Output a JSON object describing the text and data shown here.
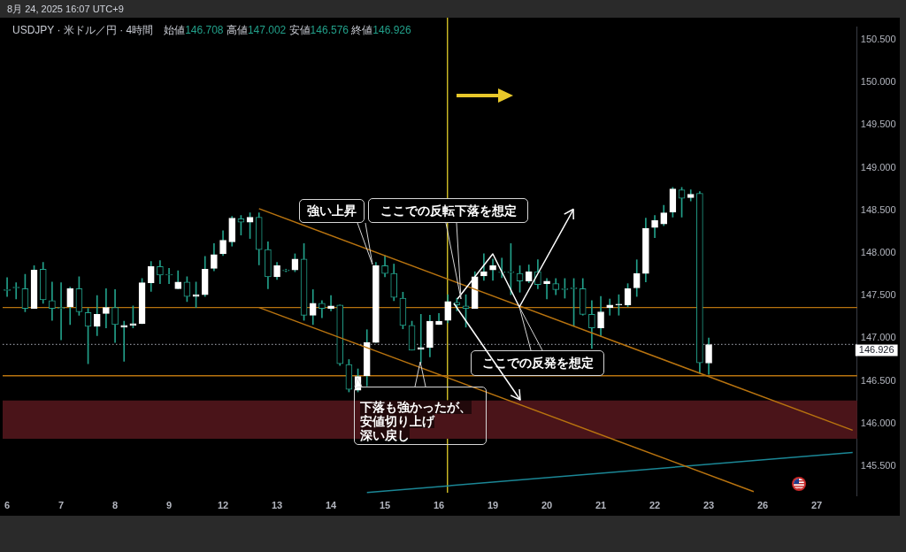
{
  "chart_data": {
    "type": "candlestick",
    "title": "USDJPY · 米ドル／円 · 4時間",
    "subtitle": "始値146.708 高値147.002 安値146.576 終値146.926",
    "categories": [
      "6",
      null,
      null,
      null,
      null,
      null,
      "7",
      null,
      null,
      null,
      null,
      null,
      "8",
      null,
      null,
      null,
      null,
      null,
      "9",
      null,
      null,
      null,
      null,
      null,
      "12",
      null,
      null,
      null,
      null,
      null,
      "13",
      null,
      null,
      null,
      null,
      null,
      "14",
      null,
      null,
      null,
      null,
      null,
      "15",
      null,
      null,
      null,
      null,
      null,
      "16",
      null,
      null,
      null,
      null,
      null,
      "19",
      null,
      null,
      null,
      null,
      null,
      "20",
      null,
      null,
      null,
      null,
      null,
      "21",
      null,
      null,
      null,
      null,
      null,
      "22",
      null,
      null,
      null,
      null,
      null,
      "23",
      null,
      null,
      null,
      null,
      null,
      "26",
      null,
      null,
      null,
      null,
      null,
      "27",
      null,
      null,
      null,
      null
    ],
    "ohlc": [
      [
        147.57,
        147.71,
        147.49,
        147.56
      ],
      [
        147.6,
        147.65,
        147.46,
        147.59
      ],
      [
        147.58,
        147.75,
        147.31,
        147.35
      ],
      [
        147.35,
        147.85,
        147.35,
        147.8
      ],
      [
        147.81,
        147.89,
        147.41,
        147.45
      ],
      [
        147.44,
        147.66,
        147.21,
        147.35
      ],
      [
        147.36,
        147.65,
        146.98,
        147.35
      ],
      [
        147.37,
        147.6,
        147.16,
        147.58
      ],
      [
        147.58,
        147.72,
        147.27,
        147.31
      ],
      [
        147.3,
        147.35,
        146.7,
        147.14
      ],
      [
        147.14,
        147.5,
        147.03,
        147.28
      ],
      [
        147.29,
        147.58,
        147.12,
        147.36
      ],
      [
        147.36,
        147.57,
        146.95,
        147.16
      ],
      [
        147.13,
        147.2,
        146.73,
        147.15
      ],
      [
        147.15,
        147.38,
        147.12,
        147.17
      ],
      [
        147.17,
        147.7,
        147.17,
        147.65
      ],
      [
        147.65,
        147.9,
        147.55,
        147.84
      ],
      [
        147.84,
        147.91,
        147.64,
        147.74
      ],
      [
        147.75,
        147.82,
        147.64,
        147.74
      ],
      [
        147.58,
        147.79,
        147.58,
        147.66
      ],
      [
        147.66,
        147.72,
        147.43,
        147.49
      ],
      [
        147.49,
        147.66,
        147.36,
        147.51
      ],
      [
        147.51,
        147.96,
        147.49,
        147.81
      ],
      [
        147.82,
        148.11,
        147.79,
        147.98
      ],
      [
        147.99,
        148.26,
        147.97,
        148.15
      ],
      [
        148.13,
        148.43,
        148.08,
        148.41
      ],
      [
        148.4,
        148.44,
        148.21,
        148.36
      ],
      [
        148.36,
        148.47,
        148.17,
        148.42
      ],
      [
        148.42,
        148.47,
        147.86,
        148.04
      ],
      [
        148.04,
        148.13,
        147.58,
        147.72
      ],
      [
        147.72,
        147.89,
        147.69,
        147.85
      ],
      [
        147.8,
        147.81,
        147.78,
        147.79
      ],
      [
        147.8,
        147.99,
        147.78,
        147.93
      ],
      [
        147.93,
        148.11,
        147.21,
        147.27
      ],
      [
        147.27,
        147.57,
        147.16,
        147.41
      ],
      [
        147.41,
        147.44,
        147.24,
        147.35
      ],
      [
        147.35,
        147.5,
        147.32,
        147.38
      ],
      [
        147.39,
        147.39,
        146.68,
        146.7
      ],
      [
        146.69,
        146.75,
        146.37,
        146.4
      ],
      [
        146.39,
        146.64,
        146.37,
        146.55
      ],
      [
        146.56,
        147.1,
        146.44,
        146.95
      ],
      [
        146.95,
        147.89,
        146.95,
        147.85
      ],
      [
        147.85,
        147.97,
        147.72,
        147.76
      ],
      [
        147.76,
        147.87,
        147.44,
        147.48
      ],
      [
        147.47,
        147.54,
        147.11,
        147.15
      ],
      [
        147.15,
        147.2,
        146.86,
        146.86
      ],
      [
        146.87,
        147.28,
        146.71,
        146.89
      ],
      [
        146.89,
        147.27,
        146.78,
        147.2
      ],
      [
        147.16,
        147.29,
        147.16,
        147.2
      ],
      [
        147.21,
        147.51,
        147.18,
        147.43
      ],
      [
        147.42,
        147.47,
        147.32,
        147.39
      ],
      [
        147.38,
        147.51,
        147.13,
        147.35
      ],
      [
        147.35,
        147.78,
        147.35,
        147.72
      ],
      [
        147.73,
        147.99,
        147.68,
        147.78
      ],
      [
        147.8,
        147.93,
        147.68,
        147.85
      ],
      [
        147.78,
        147.94,
        147.71,
        147.77
      ],
      [
        147.78,
        148.11,
        147.51,
        147.77
      ],
      [
        147.76,
        147.85,
        147.54,
        147.67
      ],
      [
        147.67,
        147.86,
        147.65,
        147.78
      ],
      [
        147.78,
        147.92,
        147.58,
        147.63
      ],
      [
        147.64,
        147.7,
        147.46,
        147.67
      ],
      [
        147.64,
        147.7,
        147.51,
        147.57
      ],
      [
        147.58,
        147.7,
        147.47,
        147.57
      ],
      [
        147.59,
        147.7,
        147.14,
        147.58
      ],
      [
        147.58,
        147.7,
        147.27,
        147.28
      ],
      [
        147.28,
        147.44,
        146.88,
        147.12
      ],
      [
        147.12,
        147.49,
        147.02,
        147.31
      ],
      [
        147.36,
        147.46,
        147.27,
        147.39
      ],
      [
        147.39,
        147.51,
        147.27,
        147.4
      ],
      [
        147.39,
        147.64,
        147.37,
        147.58
      ],
      [
        147.59,
        147.92,
        147.49,
        147.76
      ],
      [
        147.76,
        148.41,
        147.66,
        148.29
      ],
      [
        148.3,
        148.44,
        148.18,
        148.38
      ],
      [
        148.34,
        148.56,
        148.32,
        148.47
      ],
      [
        148.48,
        148.77,
        148.42,
        148.75
      ],
      [
        148.74,
        148.77,
        148.42,
        148.64
      ],
      [
        148.65,
        148.74,
        148.61,
        148.69
      ],
      [
        148.7,
        148.72,
        146.59,
        146.71
      ],
      [
        146.708,
        147.002,
        146.576,
        146.926
      ],
      null,
      null,
      null,
      null,
      null,
      null,
      null,
      null,
      null,
      null,
      null,
      null,
      null,
      null,
      null,
      null
    ],
    "color": "#22a08a",
    "colors": [
      "#22a08a",
      "#22a08a",
      "#22a08a",
      "#ffffff",
      "#22a08a",
      "#22a08a",
      "#22a08a",
      "#ffffff",
      "#22a08a",
      "#22a08a",
      "#ffffff",
      "#ffffff",
      "#22a08a",
      "#ffffff",
      "#ffffff",
      "#ffffff",
      "#ffffff",
      "#22a08a",
      "#22a08a",
      "#ffffff",
      "#22a08a",
      "#ffffff",
      "#ffffff",
      "#ffffff",
      "#ffffff",
      "#ffffff",
      "#22a08a",
      "#ffffff",
      "#22a08a",
      "#22a08a",
      "#ffffff",
      "#22a08a",
      "#ffffff",
      "#22a08a",
      "#ffffff",
      "#22a08a",
      "#ffffff",
      "#22a08a",
      "#22a08a",
      "#ffffff",
      "#ffffff",
      "#ffffff",
      "#22a08a",
      "#22a08a",
      "#22a08a",
      "#22a08a",
      "#ffffff",
      "#ffffff",
      "#ffffff",
      "#ffffff",
      "#22a08a",
      "#22a08a",
      "#ffffff",
      "#ffffff",
      "#ffffff",
      "#22a08a",
      "#22a08a",
      "#22a08a",
      "#ffffff",
      "#22a08a",
      "#ffffff",
      "#22a08a",
      "#22a08a",
      "#22a08a",
      "#22a08a",
      "#22a08a",
      "#ffffff",
      "#ffffff",
      "#ffffff",
      "#ffffff",
      "#ffffff",
      "#ffffff",
      "#ffffff",
      "#ffffff",
      "#ffffff",
      "#22a08a",
      "#ffffff",
      "#22a08a",
      "#ffffff",
      null,
      null,
      null,
      null,
      null,
      null,
      null,
      null,
      null,
      null,
      null,
      null,
      null,
      null,
      null,
      null
    ],
    "series": [
      {
        "type": "line",
        "color": "#b8730f",
        "values": [
          null,
          null,
          null,
          null,
          null,
          null,
          null,
          null,
          null,
          null,
          null,
          null,
          null,
          null,
          null,
          null,
          null,
          null,
          null,
          null,
          null,
          null,
          null,
          null,
          null,
          null,
          null,
          null,
          148.52,
          null,
          null,
          null,
          null,
          null,
          null,
          null,
          null,
          null,
          null,
          null,
          null,
          null,
          null,
          null,
          null,
          null,
          null,
          null,
          null,
          null,
          null,
          null,
          null,
          null,
          null,
          null,
          null,
          null,
          null,
          null,
          null,
          null,
          null,
          null,
          null,
          null,
          null,
          null,
          null,
          null,
          null,
          null,
          null,
          null,
          null,
          null,
          null,
          null,
          null,
          null,
          null,
          null,
          null,
          null,
          null,
          null,
          null,
          null,
          null,
          null,
          null,
          null,
          null,
          null,
          145.92
        ]
      },
      {
        "type": "line",
        "color": "#b8730f",
        "values": [
          null,
          null,
          null,
          null,
          null,
          null,
          null,
          null,
          null,
          null,
          null,
          null,
          null,
          null,
          null,
          null,
          null,
          null,
          null,
          null,
          null,
          null,
          null,
          null,
          null,
          null,
          null,
          null,
          147.36,
          null,
          null,
          null,
          null,
          null,
          null,
          null,
          null,
          null,
          null,
          null,
          null,
          null,
          null,
          null,
          null,
          null,
          null,
          null,
          null,
          null,
          null,
          null,
          null,
          null,
          null,
          null,
          null,
          null,
          null,
          null,
          null,
          null,
          null,
          null,
          null,
          null,
          null,
          null,
          null,
          null,
          null,
          null,
          null,
          null,
          null,
          null,
          null,
          null,
          null,
          null,
          null,
          null,
          null,
          145.2,
          null,
          null,
          null,
          null,
          null,
          null,
          null,
          null,
          null,
          null,
          null
        ]
      },
      {
        "type": "line",
        "color": "#1b8796",
        "values": [
          null,
          null,
          null,
          null,
          null,
          null,
          null,
          null,
          null,
          null,
          null,
          null,
          null,
          null,
          null,
          null,
          null,
          null,
          null,
          null,
          null,
          null,
          null,
          null,
          null,
          null,
          null,
          null,
          null,
          null,
          null,
          null,
          null,
          null,
          null,
          null,
          null,
          null,
          null,
          null,
          145.19,
          null,
          null,
          null,
          null,
          null,
          null,
          null,
          null,
          null,
          null,
          null,
          null,
          null,
          null,
          null,
          null,
          null,
          null,
          null,
          null,
          null,
          null,
          null,
          null,
          null,
          null,
          null,
          null,
          null,
          null,
          null,
          null,
          null,
          null,
          null,
          null,
          null,
          null,
          null,
          null,
          null,
          null,
          null,
          null,
          null,
          null,
          null,
          null,
          null,
          null,
          null,
          null,
          null,
          145.66
        ]
      }
    ],
    "ylim": [
      145.15,
      150.65
    ],
    "yticks": [
      {
        "value": 145.5,
        "label": "145.500"
      },
      {
        "value": 146,
        "label": "146.000"
      },
      {
        "value": 146.5,
        "label": "146.500"
      },
      {
        "value": 147,
        "label": "147.000"
      },
      {
        "value": 147.5,
        "label": "147.500"
      },
      {
        "value": 148,
        "label": "148.000"
      },
      {
        "value": 148.5,
        "label": "148.500"
      },
      {
        "value": 149,
        "label": "149.000"
      },
      {
        "value": 149.5,
        "label": "149.500"
      },
      {
        "value": 150,
        "label": "150.000"
      },
      {
        "value": 150.5,
        "label": "150.500"
      }
    ],
    "ref_lines": [
      {
        "axis": "y",
        "value": 147.36,
        "color": "#b8730f"
      },
      {
        "axis": "y",
        "value": 146.56,
        "color": "#b8730f"
      },
      {
        "axis": "y",
        "value": 146.926,
        "label": "146.926",
        "color": "#8a8d96",
        "line_style": "dotted"
      }
    ],
    "bands": [
      {
        "axis": "y",
        "from": 145.82,
        "to": 146.27,
        "color": "#4a1419"
      }
    ],
    "annotations": [
      "8月 24, 2025 16:07 UTC+9",
      "強い上昇",
      "ここでの反転下落を想定",
      "ここでの反発を想定",
      "下落も強かったが、",
      "安値切り上げ",
      "深い戻し"
    ]
  }
}
